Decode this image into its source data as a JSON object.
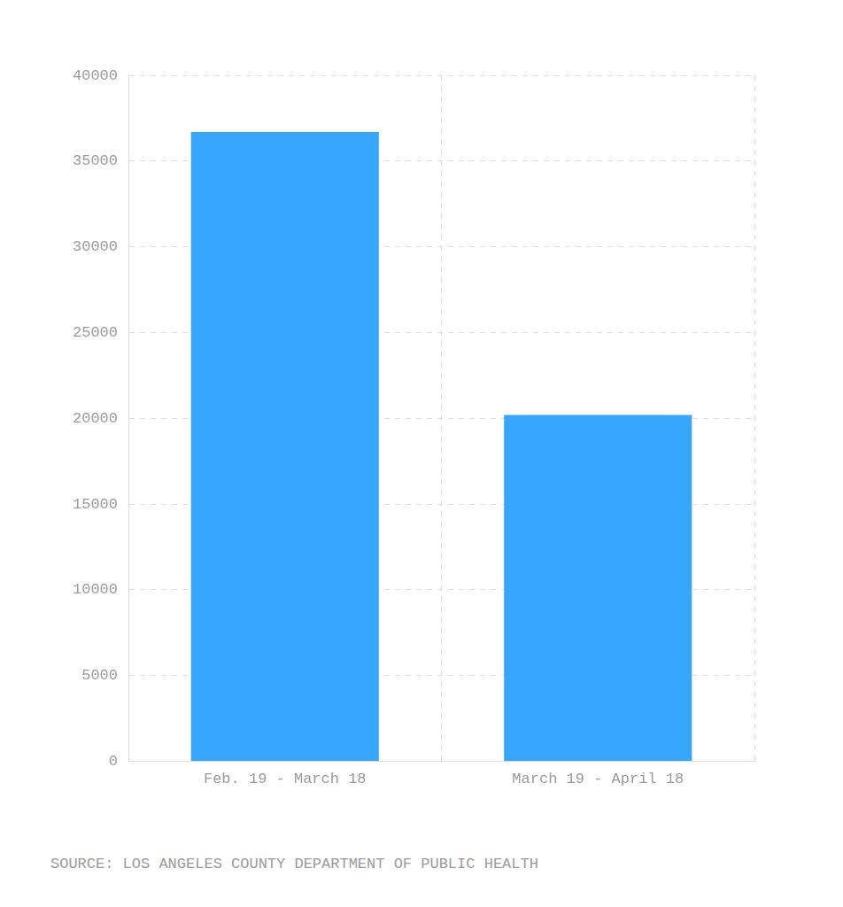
{
  "chart_data": {
    "type": "bar",
    "categories": [
      "Feb. 19 - March 18",
      "March 19 - April 18"
    ],
    "values": [
      36700,
      20200
    ],
    "color": "#36a6ff",
    "ylim": [
      0,
      40000
    ],
    "yticks": [
      0,
      5000,
      10000,
      15000,
      20000,
      25000,
      30000,
      35000,
      40000
    ],
    "grid": true,
    "source": "SOURCE: LOS ANGELES COUNTY DEPARTMENT OF PUBLIC HEALTH"
  }
}
